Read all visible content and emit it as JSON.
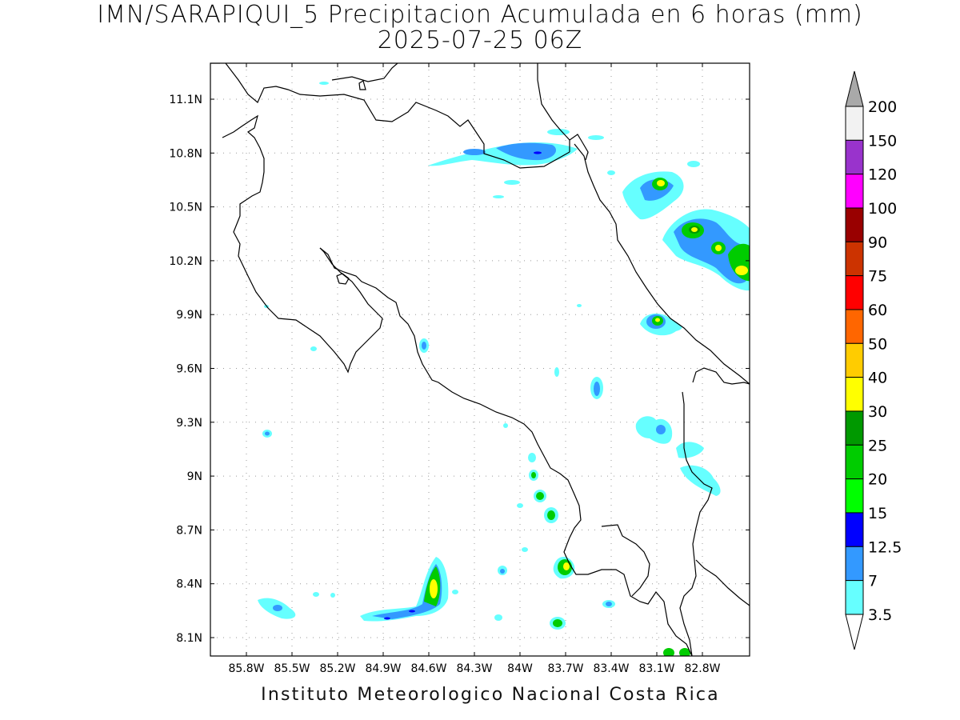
{
  "title": {
    "line1": "IMN/SARAPIQUI_5 Precipitacion Acumulada en 6 horas (mm)",
    "line2": "2025-07-25 06Z"
  },
  "axes": {
    "lon_labels": [
      "85.8W",
      "85.5W",
      "85.2W",
      "84.9W",
      "84.6W",
      "84.3W",
      "84W",
      "83.7W",
      "83.4W",
      "83.1W",
      "82.8W"
    ],
    "lat_labels": [
      "11.1N",
      "10.8N",
      "10.5N",
      "10.2N",
      "9.9N",
      "9.6N",
      "9.3N",
      "9N",
      "8.7N",
      "8.4N",
      "8.1N"
    ],
    "grid": true
  },
  "colorbar": {
    "levels": [
      "3.5",
      "7",
      "12.5",
      "15",
      "20",
      "25",
      "30",
      "40",
      "50",
      "60",
      "75",
      "90",
      "100",
      "120",
      "150",
      "200"
    ],
    "colors": [
      "#66ffff",
      "#3399ff",
      "#0000ff",
      "#00ff00",
      "#00cc00",
      "#009900",
      "#ffff00",
      "#ffcc00",
      "#ff6600",
      "#ff0000",
      "#cc3300",
      "#990000",
      "#ff00ff",
      "#9933cc",
      "#f2f2f2",
      "#a9a9a9"
    ],
    "extend": "both"
  },
  "credit": "Instituto Meteorologico Nacional Costa Rica"
}
